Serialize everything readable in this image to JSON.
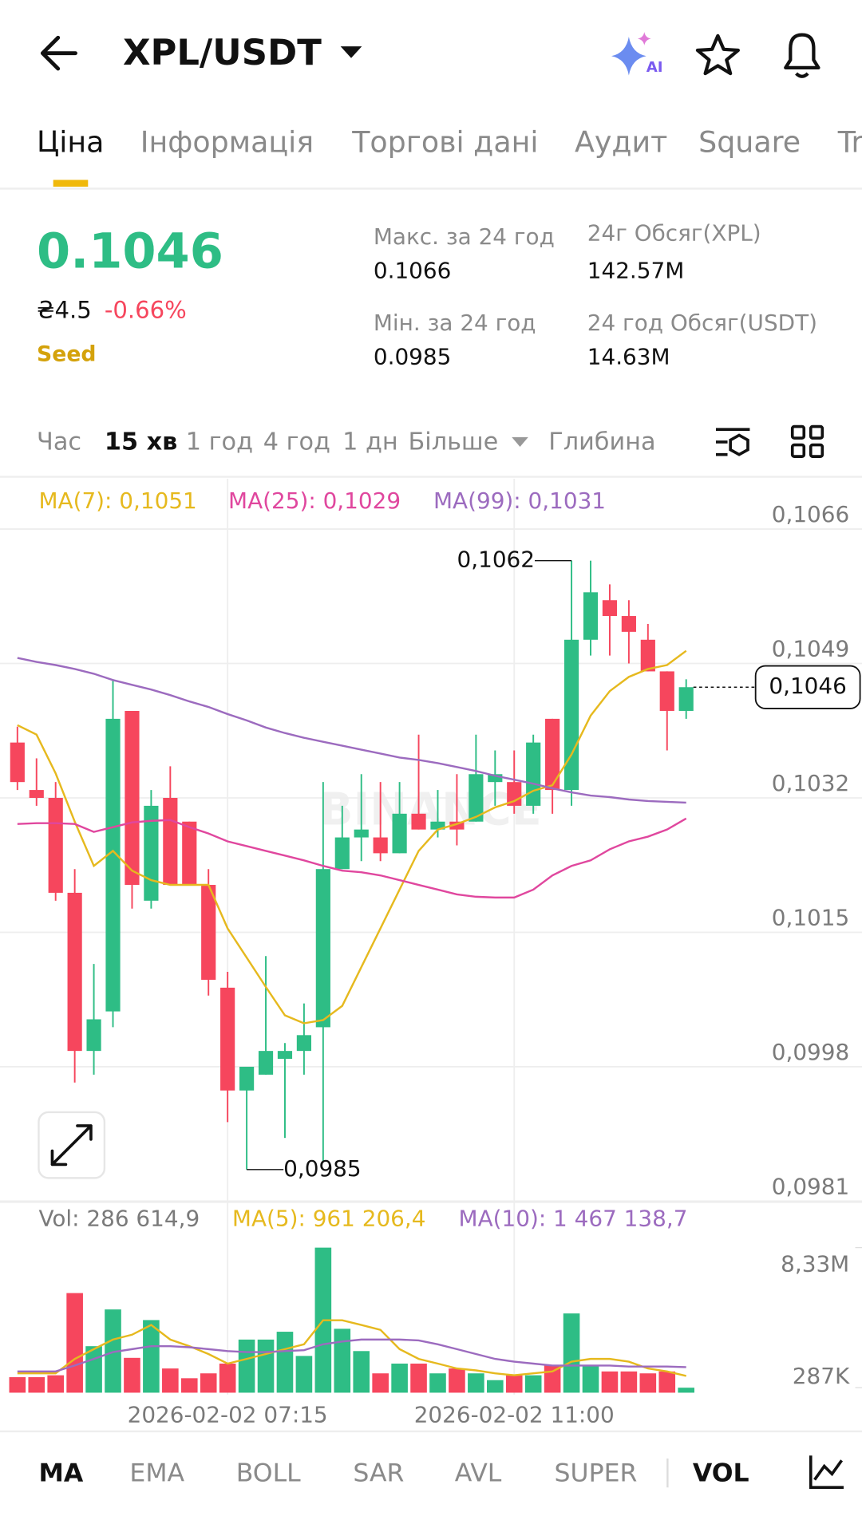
{
  "header": {
    "title": "XPL/USDT",
    "ai": "AI"
  },
  "tabs": [
    "Ціна",
    "Інформація",
    "Торгові дані",
    "Аудит",
    "Square",
    "Tr"
  ],
  "price": {
    "last": "0.1046",
    "fiat": "₴4.5",
    "change": "-0.66%",
    "tag": "Seed"
  },
  "stats": [
    {
      "label": "Макс. за 24 год",
      "value": "0.1066"
    },
    {
      "label": "Мін. за 24 год",
      "value": "0.0985"
    },
    {
      "label": "24г Обсяг(XPL)",
      "value": "142.57M"
    },
    {
      "label": "24 год Обсяг(USDT)",
      "value": "14.63M"
    }
  ],
  "intervals": [
    "Час",
    "15 хв",
    "1 год",
    "4 год",
    "1 дн",
    "Більше",
    "Глибина"
  ],
  "indicators": [
    "MA",
    "EMA",
    "BOLL",
    "SAR",
    "AVL",
    "SUPER",
    "VOL"
  ],
  "chart_data": {
    "type": "candlestick",
    "watermark": "BINANCE",
    "categories": [
      null,
      null,
      null,
      null,
      null,
      null,
      null,
      null,
      null,
      null,
      null,
      "2026-02-02 07:15",
      null,
      null,
      null,
      null,
      null,
      null,
      null,
      null,
      null,
      null,
      null,
      null,
      null,
      null,
      "2026-02-02 11:00",
      null,
      null,
      null,
      null,
      null,
      null,
      null,
      null,
      null
    ],
    "open": [
      0.1039,
      0.1033,
      0.1032,
      0.102,
      0.1,
      0.1005,
      0.1043,
      0.1019,
      0.1032,
      0.1029,
      0.1021,
      0.1008,
      0.0995,
      0.0997,
      0.0999,
      0.1,
      0.1003,
      0.1023,
      0.1027,
      0.1027,
      0.1025,
      0.103,
      0.1028,
      0.1029,
      0.1029,
      0.1034,
      0.1034,
      0.1031,
      0.1042,
      0.1033,
      0.1052,
      0.1057,
      0.1055,
      0.1052,
      0.1048,
      0.1043
    ],
    "high": [
      0.1041,
      0.1037,
      0.1034,
      0.1023,
      0.1011,
      0.1047,
      0.1043,
      0.1033,
      0.1036,
      0.1029,
      0.1023,
      0.101,
      0.0998,
      0.1012,
      0.1001,
      0.1006,
      0.1034,
      0.1031,
      0.1035,
      0.1034,
      0.1034,
      0.104,
      0.1033,
      0.1035,
      0.104,
      0.1038,
      0.1038,
      0.104,
      0.1042,
      0.1062,
      0.1062,
      0.1059,
      0.1057,
      0.1054,
      0.1048,
      0.1047
    ],
    "low": [
      0.1033,
      0.1031,
      0.1019,
      0.0996,
      0.0997,
      0.1003,
      0.1018,
      0.1018,
      0.1021,
      0.1021,
      0.1007,
      0.0991,
      0.0985,
      0.0997,
      0.0989,
      0.0997,
      0.0986,
      0.1023,
      0.1024,
      0.1024,
      0.1025,
      0.1028,
      0.1027,
      0.1026,
      0.1029,
      0.1031,
      0.103,
      0.103,
      0.103,
      0.1031,
      0.105,
      0.105,
      0.1049,
      0.1048,
      0.1038,
      0.1042
    ],
    "close": [
      0.1034,
      0.1032,
      0.102,
      0.1,
      0.1004,
      0.1042,
      0.1021,
      0.1031,
      0.1021,
      0.1021,
      0.1009,
      0.0995,
      0.0998,
      0.1,
      0.1,
      0.1002,
      0.1023,
      0.1027,
      0.1028,
      0.1025,
      0.103,
      0.1028,
      0.1029,
      0.1028,
      0.1035,
      0.1035,
      0.1031,
      0.1039,
      0.1033,
      0.1052,
      0.1058,
      0.1055,
      0.1053,
      0.1048,
      0.1043,
      0.1046
    ],
    "up_color": "#2ebd85",
    "down_color": "#f6465d",
    "series": [
      {
        "name": "MA(7): 0,1051",
        "color": "#e6b91e",
        "values": [
          0.10412,
          0.104,
          0.10351,
          0.1029,
          0.10234,
          0.10253,
          0.10228,
          0.10216,
          0.1021,
          0.1021,
          0.1021,
          0.10155,
          0.10118,
          0.10081,
          0.10045,
          0.10035,
          0.10039,
          0.10057,
          0.10106,
          0.10155,
          0.10204,
          0.10253,
          0.1028,
          0.10287,
          0.10296,
          0.10308,
          0.10316,
          0.10329,
          0.10336,
          0.10375,
          0.10424,
          0.10455,
          0.10473,
          0.10483,
          0.10488,
          0.10506
        ]
      },
      {
        "name": "MA(25): 0,1029",
        "color": "#e0479e",
        "values": [
          0.10287,
          0.10288,
          0.10288,
          0.10287,
          0.10277,
          0.10283,
          0.10289,
          0.10291,
          0.10292,
          0.10283,
          0.10275,
          0.10265,
          0.10259,
          0.10253,
          0.10247,
          0.10241,
          0.10234,
          0.10228,
          0.10226,
          0.10222,
          0.10216,
          0.1021,
          0.10204,
          0.10198,
          0.10195,
          0.10194,
          0.10194,
          0.10204,
          0.10222,
          0.10234,
          0.10241,
          0.10255,
          0.10265,
          0.10271,
          0.1028,
          0.10294
        ]
      },
      {
        "name": "MA(99): 0,1031",
        "color": "#9c6bbf",
        "values": [
          0.10497,
          0.10492,
          0.10488,
          0.10483,
          0.10477,
          0.10469,
          0.10463,
          0.10457,
          0.1045,
          0.10442,
          0.10435,
          0.10426,
          0.10418,
          0.10409,
          0.10402,
          0.10396,
          0.10391,
          0.10386,
          0.10381,
          0.10376,
          0.10371,
          0.10368,
          0.10364,
          0.10359,
          0.10354,
          0.10348,
          0.10343,
          0.10338,
          0.10332,
          0.10327,
          0.10323,
          0.10321,
          0.10318,
          0.10316,
          0.10315,
          0.10314
        ]
      }
    ],
    "ylim": [
      0.0981,
      0.1066
    ],
    "yticks": [
      {
        "value": 0.1066,
        "label": "0,1066"
      },
      {
        "value": 0.1049,
        "label": "0,1049"
      },
      {
        "value": 0.1032,
        "label": "0,1032"
      },
      {
        "value": 0.1015,
        "label": "0,1015"
      },
      {
        "value": 0.0998,
        "label": "0,0998"
      },
      {
        "value": 0.0981,
        "label": "0,0981"
      }
    ],
    "grid": true,
    "annotations": [
      {
        "value": 0.1062,
        "label": "0,1062"
      },
      {
        "value": 0.0985,
        "label": "0,0985"
      }
    ],
    "last_price": {
      "value": 0.1046,
      "label": "0,1046"
    },
    "volume": {
      "label": "Vol: 286 614,9",
      "values": [
        890000,
        890000,
        1000000,
        5720000,
        2670000,
        4780000,
        2000000,
        4170000,
        1390000,
        830000,
        1110000,
        1670000,
        3050000,
        3050000,
        3500000,
        2110000,
        8330000,
        3670000,
        2390000,
        1110000,
        1670000,
        1670000,
        1110000,
        1390000,
        1110000,
        720000,
        1000000,
        1000000,
        1560000,
        4550000,
        1560000,
        1220000,
        1220000,
        1110000,
        1220000,
        286614.9
      ],
      "series": [
        {
          "name": "MA(5): 961 206,4",
          "color": "#e6b91e",
          "values": [
            1110000,
            1110000,
            1110000,
            1940000,
            2500000,
            3050000,
            3330000,
            3890000,
            3050000,
            2670000,
            2220000,
            1670000,
            1940000,
            2220000,
            2500000,
            2780000,
            4160000,
            4160000,
            3890000,
            3610000,
            2500000,
            1940000,
            1670000,
            1390000,
            1280000,
            1110000,
            1000000,
            1110000,
            1220000,
            1780000,
            1940000,
            1940000,
            1780000,
            1390000,
            1220000,
            961206.4
          ]
        },
        {
          "name": "MA(10): 1 467 138,7",
          "color": "#9c6bbf",
          "values": [
            1220000,
            1220000,
            1220000,
            1560000,
            1940000,
            2330000,
            2500000,
            2670000,
            2670000,
            2610000,
            2500000,
            2390000,
            2330000,
            2330000,
            2390000,
            2440000,
            2780000,
            2940000,
            3050000,
            3050000,
            3050000,
            3000000,
            2780000,
            2500000,
            2220000,
            1940000,
            1780000,
            1670000,
            1560000,
            1560000,
            1560000,
            1560000,
            1500000,
            1500000,
            1500000,
            1467138.7
          ]
        }
      ],
      "ylim": [
        0,
        8330000
      ],
      "yticks": [
        {
          "value": 8330000,
          "label": "8,33M"
        },
        {
          "value": 287000,
          "label": "287K"
        }
      ]
    }
  }
}
